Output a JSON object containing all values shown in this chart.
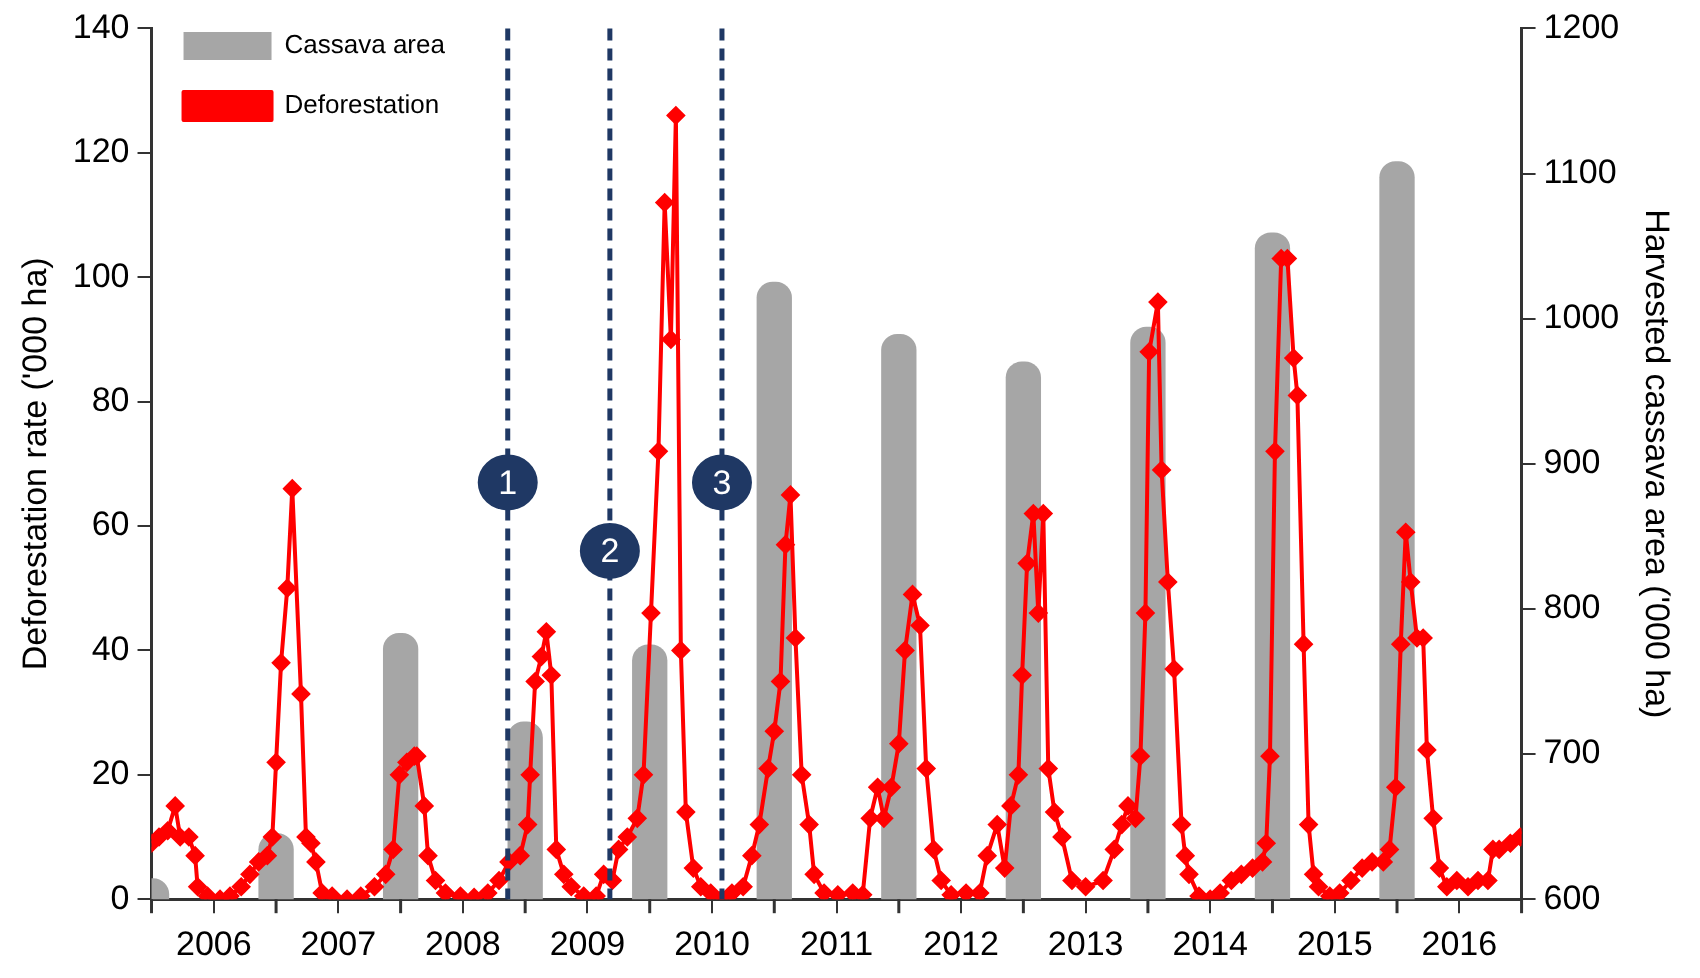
{
  "chart_data": {
    "type": "bar",
    "ylabel": "Deforestation rate ('000 ha)",
    "y2label": "Harvested cassava area ('000 ha)",
    "series": [
      {
        "name": "Cassava area",
        "axis": "y2",
        "color": "#a6a6a6",
        "x": [
          2006,
          2007,
          2008,
          2009,
          2010,
          2011,
          2012,
          2013,
          2014,
          2015,
          2016
        ],
        "values": [
          614,
          645,
          783,
          722,
          775,
          1025,
          989,
          970,
          994,
          1059,
          1108
        ]
      },
      {
        "name": "Deforestation",
        "type": "line",
        "color": "#ff0000",
        "marker": "diamond",
        "line_style": "solid",
        "x": [
          2006.0,
          2006.06,
          2006.13,
          2006.19,
          2006.23,
          2006.3,
          2006.35,
          2006.37,
          2006.45,
          2006.55,
          2006.63,
          2006.72,
          2006.79,
          2006.86,
          2006.93,
          2006.97,
          2007.0,
          2007.04,
          2007.09,
          2007.13,
          2007.2,
          2007.24,
          2007.28,
          2007.32,
          2007.37,
          2007.45,
          2007.57,
          2007.68,
          2007.79,
          2007.88,
          2007.94,
          2007.99,
          2008.05,
          2008.11,
          2008.13,
          2008.19,
          2008.22,
          2008.28,
          2008.36,
          2008.48,
          2008.59,
          2008.7,
          2008.79,
          2008.87,
          2008.96,
          2009.02,
          2009.04,
          2009.08,
          2009.13,
          2009.17,
          2009.21,
          2009.25,
          2009.31,
          2009.37,
          2009.47,
          2009.57,
          2009.63,
          2009.7,
          2009.75,
          2009.82,
          2009.9,
          2009.95,
          2010.01,
          2010.07,
          2010.12,
          2010.17,
          2010.21,
          2010.25,
          2010.29,
          2010.35,
          2010.41,
          2010.49,
          2010.58,
          2010.66,
          2010.75,
          2010.82,
          2010.88,
          2010.95,
          2011.0,
          2011.05,
          2011.09,
          2011.13,
          2011.17,
          2011.22,
          2011.28,
          2011.32,
          2011.4,
          2011.51,
          2011.63,
          2011.71,
          2011.77,
          2011.83,
          2011.88,
          2011.94,
          2012.0,
          2012.05,
          2012.11,
          2012.17,
          2012.22,
          2012.28,
          2012.34,
          2012.42,
          2012.54,
          2012.65,
          2012.71,
          2012.79,
          2012.85,
          2012.9,
          2012.96,
          2012.99,
          2013.03,
          2013.08,
          2013.12,
          2013.16,
          2013.2,
          2013.25,
          2013.31,
          2013.39,
          2013.5,
          2013.64,
          2013.73,
          2013.79,
          2013.84,
          2013.9,
          2013.94,
          2013.98,
          2014.01,
          2014.08,
          2014.11,
          2014.16,
          2014.21,
          2014.27,
          2014.3,
          2014.33,
          2014.41,
          2014.5,
          2014.58,
          2014.67,
          2014.75,
          2014.84,
          2014.92,
          2014.95,
          2014.98,
          2015.02,
          2015.07,
          2015.12,
          2015.17,
          2015.2,
          2015.25,
          2015.29,
          2015.33,
          2015.37,
          2015.46,
          2015.54,
          2015.63,
          2015.72,
          2015.8,
          2015.89,
          2015.94,
          2015.99,
          2016.03,
          2016.07,
          2016.11,
          2016.16,
          2016.21,
          2016.24,
          2016.29,
          2016.34,
          2016.4,
          2016.48,
          2016.57,
          2016.65,
          2016.73,
          2016.77,
          2016.82,
          2016.91,
          2016.99
        ],
        "values": [
          9,
          10,
          11,
          15,
          10,
          10,
          7,
          2,
          0.5,
          0,
          0.5,
          2,
          4,
          6,
          7,
          10,
          22,
          38,
          50,
          66,
          33,
          10,
          9,
          6,
          1,
          0.5,
          0,
          0.5,
          2,
          4,
          8,
          20,
          22,
          23,
          23,
          15,
          7,
          3,
          1,
          0.5,
          0.3,
          1,
          3,
          6,
          7,
          12,
          20,
          35,
          39,
          43,
          36,
          8,
          4,
          2,
          0.5,
          0.5,
          4,
          3,
          8,
          10,
          13,
          20,
          46,
          72,
          112,
          90,
          126,
          40,
          14,
          5,
          2,
          1,
          0.1,
          1,
          2,
          7,
          12,
          21,
          27,
          35,
          57,
          65,
          42,
          20,
          12,
          4,
          1,
          0.7,
          1,
          0.7,
          13,
          18,
          13,
          18,
          25,
          40,
          49,
          44,
          21,
          8,
          3,
          0.7,
          1,
          1,
          7,
          12,
          5,
          15,
          20,
          36,
          54,
          62,
          46,
          62,
          21,
          14,
          10,
          3,
          2,
          3,
          8,
          12,
          15,
          13,
          23,
          46,
          88,
          96,
          69,
          51,
          37,
          12,
          7,
          4,
          0.5,
          0,
          1,
          3,
          4,
          5,
          6,
          9,
          23,
          72,
          103,
          103,
          87,
          81,
          41,
          12,
          4,
          2,
          0.5,
          1,
          3,
          5,
          6,
          6,
          8,
          18,
          41,
          59,
          51,
          42,
          42,
          24,
          13,
          5,
          2,
          3,
          2,
          3,
          3,
          8,
          8,
          9,
          10
        ]
      }
    ],
    "xlim": [
      2006,
      2017
    ],
    "xticks": [
      {
        "value": 2006,
        "label": null
      },
      {
        "value": 2007,
        "label": null
      },
      {
        "value": 2008,
        "label": null
      },
      {
        "value": 2009,
        "label": null
      },
      {
        "value": 2010,
        "label": null
      },
      {
        "value": 2011,
        "label": null
      },
      {
        "value": 2012,
        "label": null
      },
      {
        "value": 2013,
        "label": null
      },
      {
        "value": 2014,
        "label": null
      },
      {
        "value": 2015,
        "label": null
      },
      {
        "value": 2016,
        "label": null
      },
      {
        "value": 2017,
        "label": null
      },
      {
        "value": 2006.5,
        "label": "2006"
      },
      {
        "value": 2007.5,
        "label": "2007"
      },
      {
        "value": 2008.5,
        "label": "2008"
      },
      {
        "value": 2009.5,
        "label": "2009"
      },
      {
        "value": 2010.5,
        "label": "2010"
      },
      {
        "value": 2011.5,
        "label": "2011"
      },
      {
        "value": 2012.5,
        "label": "2012"
      },
      {
        "value": 2013.5,
        "label": "2013"
      },
      {
        "value": 2014.5,
        "label": "2014"
      },
      {
        "value": 2015.5,
        "label": "2015"
      },
      {
        "value": 2016.5,
        "label": "2016"
      }
    ],
    "ylim": [
      0,
      140
    ],
    "yticks": [
      0,
      20,
      40,
      60,
      80,
      100,
      120,
      140
    ],
    "y2lim": [
      600,
      1200
    ],
    "y2ticks": [
      600,
      700,
      800,
      900,
      1000,
      1100,
      1200
    ],
    "ref_lines": [
      {
        "axis": "x",
        "value": 2008.86,
        "color": "#1f3864",
        "line_style": "dashed"
      },
      {
        "axis": "x",
        "value": 2009.68,
        "color": "#1f3864",
        "line_style": "dashed"
      },
      {
        "axis": "x",
        "value": 2010.58,
        "color": "#1f3864",
        "line_style": "dashed"
      }
    ],
    "annotations": [
      {
        "text": "1",
        "x": 2008.86,
        "y": 67
      },
      {
        "text": "2",
        "x": 2009.68,
        "y": 56
      },
      {
        "text": "3",
        "x": 2010.58,
        "y": 67
      }
    ],
    "grid": false,
    "legend": "top left"
  }
}
